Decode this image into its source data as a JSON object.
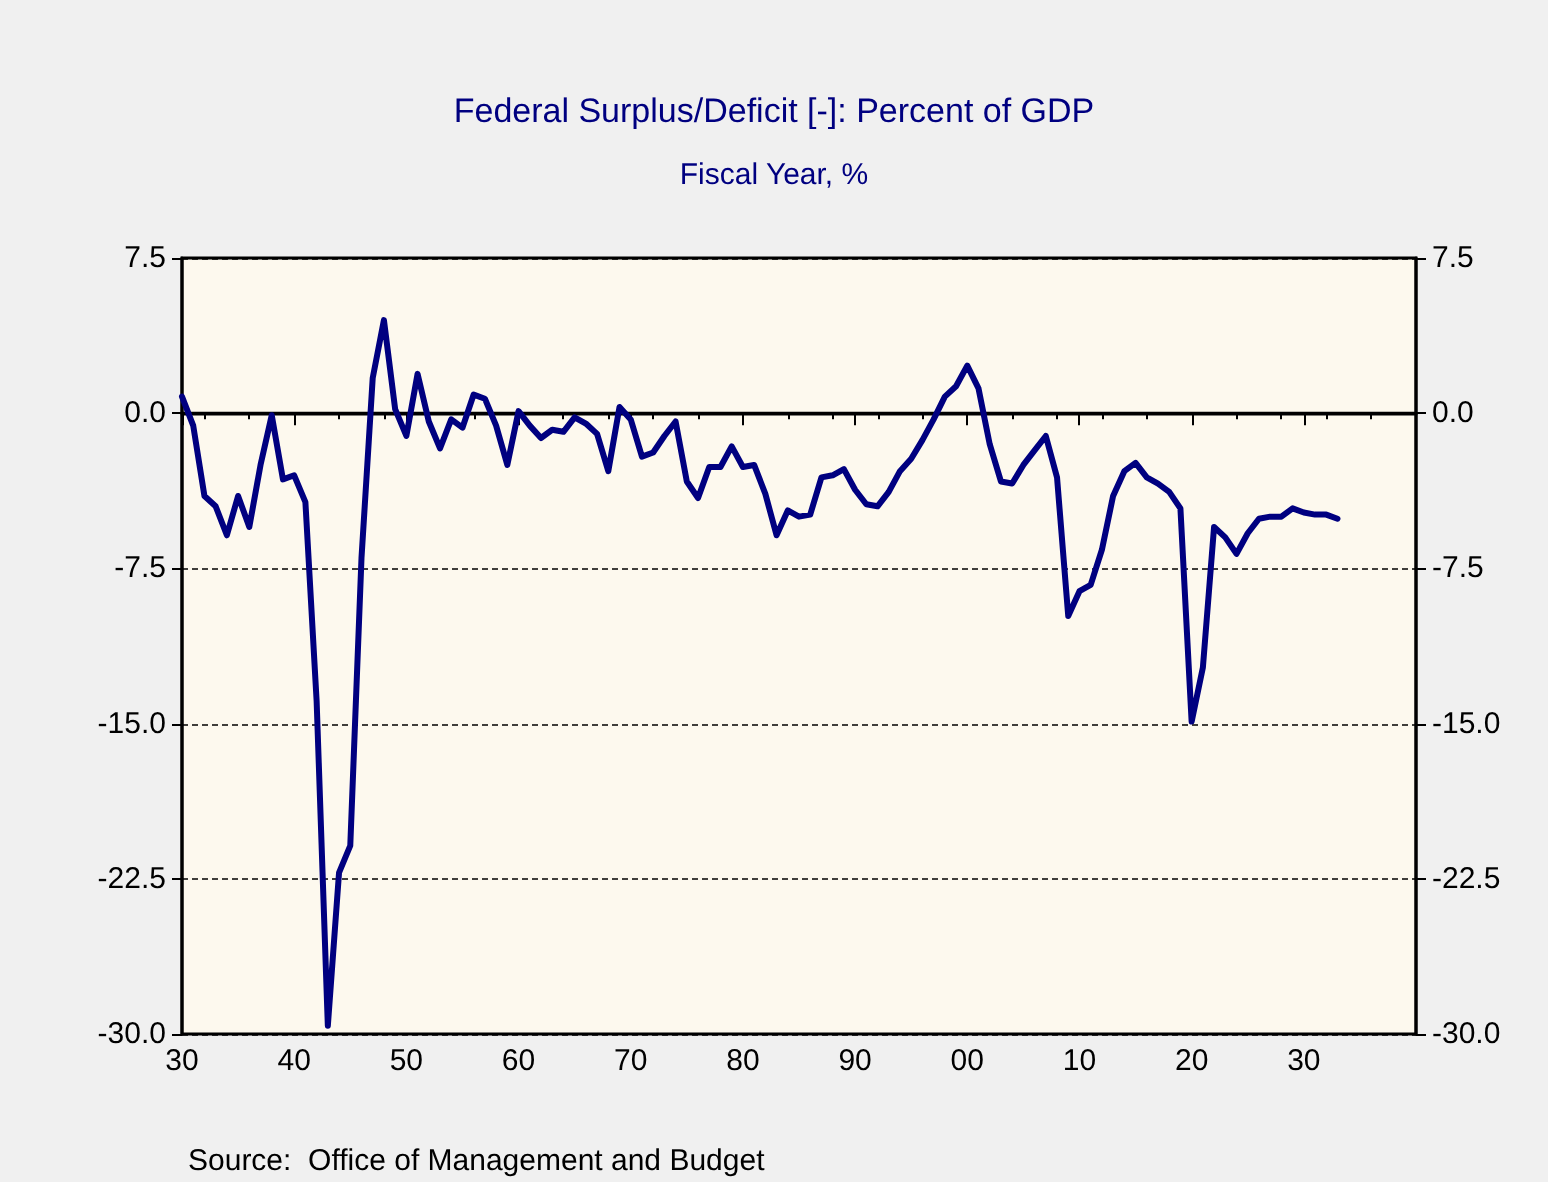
{
  "chart_data": {
    "type": "line",
    "title": "Federal Surplus/Deficit [-]: Percent of GDP",
    "subtitle": "Fiscal Year, %",
    "x": [
      1930,
      1931,
      1932,
      1933,
      1934,
      1935,
      1936,
      1937,
      1938,
      1939,
      1940,
      1941,
      1942,
      1943,
      1944,
      1945,
      1946,
      1947,
      1948,
      1949,
      1950,
      1951,
      1952,
      1953,
      1954,
      1955,
      1956,
      1957,
      1958,
      1959,
      1960,
      1961,
      1962,
      1963,
      1964,
      1965,
      1966,
      1967,
      1968,
      1969,
      1970,
      1971,
      1972,
      1973,
      1974,
      1975,
      1976,
      1977,
      1978,
      1979,
      1980,
      1981,
      1982,
      1983,
      1984,
      1985,
      1986,
      1987,
      1988,
      1989,
      1990,
      1991,
      1992,
      1993,
      1994,
      1995,
      1996,
      1997,
      1998,
      1999,
      2000,
      2001,
      2002,
      2003,
      2004,
      2005,
      2006,
      2007,
      2008,
      2009,
      2010,
      2011,
      2012,
      2013,
      2014,
      2015,
      2016,
      2017,
      2018,
      2019,
      2020,
      2021,
      2022,
      2023,
      2024,
      2025,
      2026,
      2027,
      2028,
      2029,
      2030,
      2031,
      2032,
      2033
    ],
    "series": [
      {
        "color": "#000080",
        "values": [
          0.8,
          -0.6,
          -4.0,
          -4.5,
          -5.9,
          -4.0,
          -5.5,
          -2.5,
          -0.1,
          -3.2,
          -3.0,
          -4.3,
          -13.9,
          -29.6,
          -22.2,
          -20.9,
          -7.0,
          1.7,
          4.5,
          0.2,
          -1.1,
          1.9,
          -0.4,
          -1.7,
          -0.3,
          -0.7,
          0.9,
          0.7,
          -0.6,
          -2.5,
          0.1,
          -0.6,
          -1.2,
          -0.8,
          -0.9,
          -0.2,
          -0.5,
          -1.0,
          -2.8,
          0.3,
          -0.3,
          -2.1,
          -1.9,
          -1.1,
          -0.4,
          -3.3,
          -4.1,
          -2.6,
          -2.6,
          -1.6,
          -2.6,
          -2.5,
          -3.9,
          -5.9,
          -4.7,
          -5.0,
          -4.9,
          -3.1,
          -3.0,
          -2.7,
          -3.7,
          -4.4,
          -4.5,
          -3.8,
          -2.8,
          -2.2,
          -1.3,
          -0.3,
          0.8,
          1.3,
          2.3,
          1.2,
          -1.5,
          -3.3,
          -3.4,
          -2.5,
          -1.8,
          -1.1,
          -3.1,
          -9.8,
          -8.6,
          -8.3,
          -6.6,
          -4.0,
          -2.8,
          -2.4,
          -3.1,
          -3.4,
          -3.8,
          -4.6,
          -14.9,
          -12.3,
          -5.5,
          -6.0,
          -6.8,
          -5.8,
          -5.1,
          -5.0,
          -5.0,
          -4.6,
          -4.8,
          -4.9,
          -4.9,
          -5.1
        ]
      }
    ],
    "xlim": [
      1930,
      2040
    ],
    "xticks": [
      {
        "value": 1930,
        "label": "30"
      },
      {
        "value": 1940,
        "label": "40"
      },
      {
        "value": 1950,
        "label": "50"
      },
      {
        "value": 1960,
        "label": "60"
      },
      {
        "value": 1970,
        "label": "70"
      },
      {
        "value": 1980,
        "label": "80"
      },
      {
        "value": 1990,
        "label": "90"
      },
      {
        "value": 2000,
        "label": "00"
      },
      {
        "value": 2010,
        "label": "10"
      },
      {
        "value": 2020,
        "label": "20"
      },
      {
        "value": 2030,
        "label": "30"
      }
    ],
    "ylim": [
      -30,
      7.5
    ],
    "yticks": [
      {
        "value": 7.5,
        "label": "7.5"
      },
      {
        "value": 0,
        "label": "0.0"
      },
      {
        "value": -7.5,
        "label": "-7.5"
      },
      {
        "value": -15,
        "label": "-15.0"
      },
      {
        "value": -22.5,
        "label": "-22.5"
      },
      {
        "value": -30,
        "label": "-30.0"
      }
    ],
    "y2lim": [
      -30,
      7.5
    ],
    "y2ticks": [
      {
        "value": 7.5,
        "label": "7.5"
      },
      {
        "value": 0,
        "label": "0.0"
      },
      {
        "value": -7.5,
        "label": "-7.5"
      },
      {
        "value": -15,
        "label": "-15.0"
      },
      {
        "value": -22.5,
        "label": "-22.5"
      },
      {
        "value": -30,
        "label": "-30.0"
      }
    ],
    "grid": "y",
    "ref_lines": [
      {
        "axis": "y",
        "value": 0,
        "color": "#000000",
        "line_style": "solid"
      }
    ],
    "annotations": [
      "Source:  Office of Management and Budget"
    ],
    "marker": "none",
    "line_style": "solid"
  }
}
